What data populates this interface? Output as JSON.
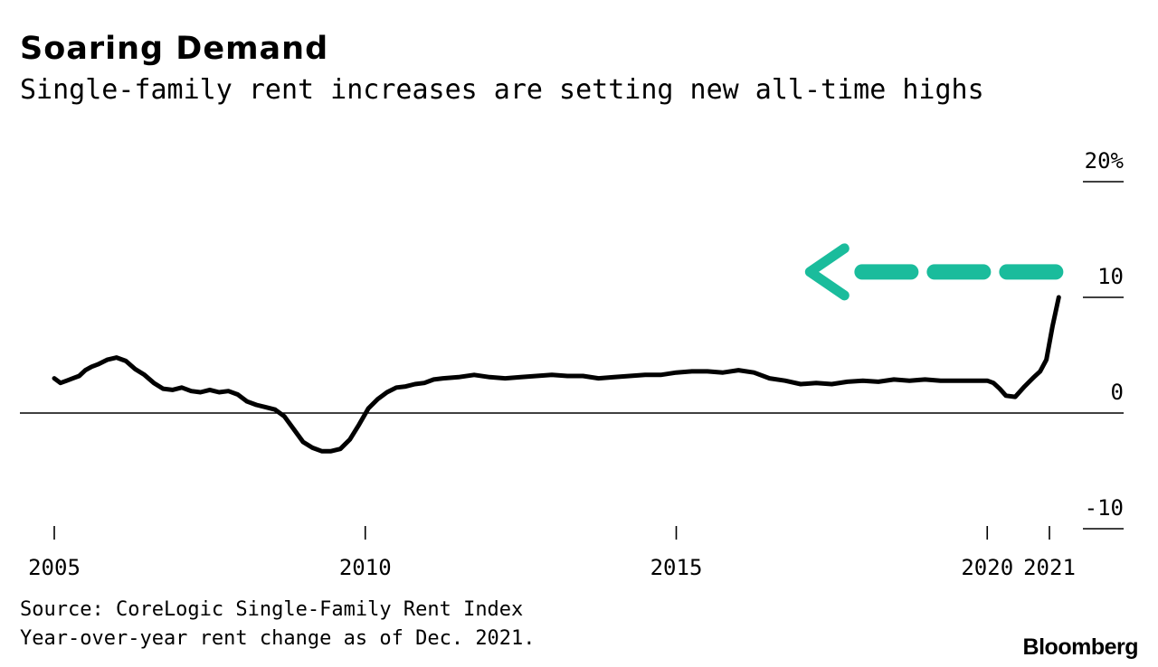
{
  "brand": "Bloomberg",
  "colors": {
    "line": "#000000",
    "arrow": "#1abc9c",
    "axis": "#000000"
  },
  "chart_data": {
    "type": "line",
    "title": "Soaring Demand",
    "subtitle": "Single-family rent increases are setting new all-time highs",
    "xlabel": "",
    "ylabel": "",
    "xlim": [
      2005,
      2021.75
    ],
    "ylim": [
      -10,
      20
    ],
    "x_ticks": [
      2005,
      2010,
      2015,
      2020,
      2021
    ],
    "x_tick_labels": [
      "2005",
      "2010",
      "2015",
      "2020",
      "2021"
    ],
    "y_ticks": [
      20,
      10,
      0,
      -10
    ],
    "y_tick_labels": [
      "20%",
      "10",
      "0",
      "-10"
    ],
    "grid": false,
    "annotation": {
      "type": "dashed-arrow",
      "direction": "left",
      "y": 12.2,
      "x_from": 2021.1,
      "x_to": 2017.15
    },
    "series": [
      {
        "x": [
          2005.0,
          2005.1,
          2005.2,
          2005.3,
          2005.4,
          2005.5,
          2005.6,
          2005.7,
          2005.85,
          2006.0,
          2006.15,
          2006.3,
          2006.45,
          2006.6,
          2006.75,
          2006.9,
          2007.05,
          2007.2,
          2007.35,
          2007.5,
          2007.65,
          2007.8,
          2007.95,
          2008.1,
          2008.25,
          2008.4,
          2008.55,
          2008.7,
          2008.85,
          2009.0,
          2009.15,
          2009.3,
          2009.45,
          2009.6,
          2009.75,
          2009.9,
          2010.05,
          2010.2,
          2010.35,
          2010.5,
          2010.65,
          2010.8,
          2010.95,
          2011.1,
          2011.25,
          2011.5,
          2011.75,
          2012.0,
          2012.25,
          2012.5,
          2012.75,
          2013.0,
          2013.25,
          2013.5,
          2013.75,
          2014.0,
          2014.25,
          2014.5,
          2014.75,
          2015.0,
          2015.25,
          2015.5,
          2015.75,
          2016.0,
          2016.25,
          2016.5,
          2016.75,
          2017.0,
          2017.25,
          2017.5,
          2017.75,
          2018.0,
          2018.25,
          2018.5,
          2018.75,
          2019.0,
          2019.25,
          2019.5,
          2019.75,
          2020.0,
          2020.1,
          2020.2,
          2020.3,
          2020.45,
          2020.6,
          2020.75,
          2020.85,
          2020.95,
          2021.05,
          2021.15
        ],
        "y": [
          3.0,
          2.6,
          2.8,
          3.0,
          3.2,
          3.7,
          4.0,
          4.2,
          4.6,
          4.8,
          4.5,
          3.8,
          3.3,
          2.6,
          2.1,
          2.0,
          2.2,
          1.9,
          1.8,
          2.0,
          1.8,
          1.9,
          1.6,
          1.0,
          0.7,
          0.5,
          0.3,
          -0.3,
          -1.4,
          -2.5,
          -3.0,
          -3.3,
          -3.3,
          -3.1,
          -2.3,
          -1.0,
          0.4,
          1.2,
          1.8,
          2.2,
          2.3,
          2.5,
          2.6,
          2.9,
          3.0,
          3.1,
          3.3,
          3.1,
          3.0,
          3.1,
          3.2,
          3.3,
          3.2,
          3.2,
          3.0,
          3.1,
          3.2,
          3.3,
          3.3,
          3.5,
          3.6,
          3.6,
          3.5,
          3.7,
          3.5,
          3.0,
          2.8,
          2.5,
          2.6,
          2.5,
          2.7,
          2.8,
          2.7,
          2.9,
          2.8,
          2.9,
          2.8,
          2.8,
          2.8,
          2.8,
          2.6,
          2.1,
          1.5,
          1.4,
          2.3,
          3.1,
          3.6,
          4.6,
          7.5,
          10.0
        ]
      }
    ]
  },
  "footer": {
    "source": "Source: CoreLogic Single-Family Rent Index",
    "note": "Year-over-year rent change as of Dec. 2021."
  }
}
